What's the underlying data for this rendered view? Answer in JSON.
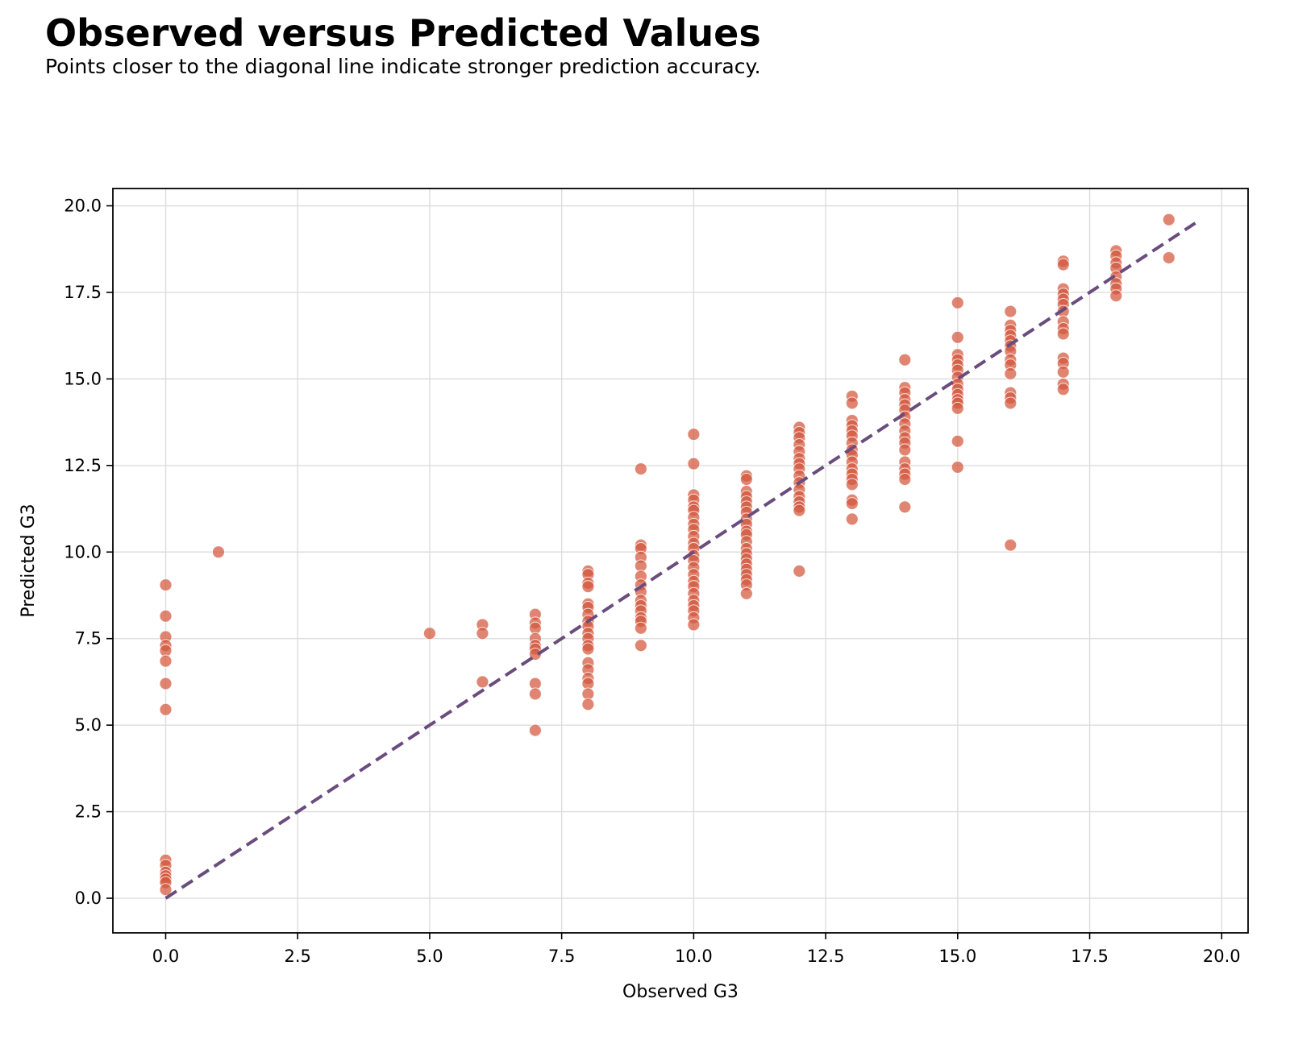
{
  "chart_data": {
    "type": "scatter",
    "title": "Observed versus Predicted Values",
    "subtitle": "Points closer to the diagonal line indicate stronger prediction accuracy.",
    "xlabel": "Observed G3",
    "ylabel": "Predicted G3",
    "xlim": [
      -1,
      20.5
    ],
    "ylim": [
      -1,
      20.5
    ],
    "xticks": [
      "0.0",
      "2.5",
      "5.0",
      "7.5",
      "10.0",
      "12.5",
      "15.0",
      "17.5",
      "20.0"
    ],
    "yticks": [
      "0.0",
      "2.5",
      "5.0",
      "7.5",
      "10.0",
      "12.5",
      "15.0",
      "17.5",
      "20.0"
    ],
    "grid": true,
    "reference_line": {
      "from": [
        0,
        0
      ],
      "to": [
        19.5,
        19.5
      ],
      "style": "dashed",
      "color": "#6a4c7d"
    },
    "point_color": "#d2563c",
    "points": [
      [
        0,
        9.05
      ],
      [
        0,
        8.15
      ],
      [
        0,
        7.55
      ],
      [
        0,
        7.3
      ],
      [
        0,
        7.15
      ],
      [
        0,
        6.85
      ],
      [
        0,
        6.2
      ],
      [
        0,
        5.45
      ],
      [
        0,
        1.1
      ],
      [
        0,
        0.95
      ],
      [
        0,
        0.75
      ],
      [
        0,
        0.65
      ],
      [
        0,
        0.55
      ],
      [
        0,
        0.45
      ],
      [
        0,
        0.25
      ],
      [
        1,
        10.0
      ],
      [
        5,
        7.65
      ],
      [
        6,
        7.9
      ],
      [
        6,
        7.65
      ],
      [
        6,
        6.25
      ],
      [
        7,
        8.2
      ],
      [
        7,
        7.95
      ],
      [
        7,
        7.8
      ],
      [
        7,
        7.5
      ],
      [
        7,
        7.3
      ],
      [
        7,
        7.2
      ],
      [
        7,
        7.05
      ],
      [
        7,
        6.2
      ],
      [
        7,
        5.9
      ],
      [
        7,
        4.85
      ],
      [
        8,
        9.45
      ],
      [
        8,
        9.35
      ],
      [
        8,
        9.1
      ],
      [
        8,
        9.0
      ],
      [
        8,
        8.5
      ],
      [
        8,
        8.4
      ],
      [
        8,
        8.2
      ],
      [
        8,
        8.0
      ],
      [
        8,
        7.85
      ],
      [
        8,
        7.65
      ],
      [
        8,
        7.5
      ],
      [
        8,
        7.3
      ],
      [
        8,
        7.2
      ],
      [
        8,
        6.8
      ],
      [
        8,
        6.6
      ],
      [
        8,
        6.35
      ],
      [
        8,
        6.2
      ],
      [
        8,
        5.9
      ],
      [
        8,
        5.6
      ],
      [
        9,
        12.4
      ],
      [
        9,
        10.2
      ],
      [
        9,
        10.1
      ],
      [
        9,
        9.85
      ],
      [
        9,
        9.6
      ],
      [
        9,
        9.3
      ],
      [
        9,
        9.05
      ],
      [
        9,
        8.85
      ],
      [
        9,
        8.6
      ],
      [
        9,
        8.45
      ],
      [
        9,
        8.3
      ],
      [
        9,
        8.1
      ],
      [
        9,
        8.0
      ],
      [
        9,
        7.8
      ],
      [
        9,
        7.3
      ],
      [
        10,
        13.4
      ],
      [
        10,
        12.55
      ],
      [
        10,
        11.65
      ],
      [
        10,
        11.5
      ],
      [
        10,
        11.3
      ],
      [
        10,
        11.2
      ],
      [
        10,
        11.0
      ],
      [
        10,
        10.8
      ],
      [
        10,
        10.65
      ],
      [
        10,
        10.45
      ],
      [
        10,
        10.25
      ],
      [
        10,
        10.1
      ],
      [
        10,
        9.9
      ],
      [
        10,
        9.75
      ],
      [
        10,
        9.55
      ],
      [
        10,
        9.35
      ],
      [
        10,
        9.15
      ],
      [
        10,
        9.0
      ],
      [
        10,
        8.8
      ],
      [
        10,
        8.6
      ],
      [
        10,
        8.45
      ],
      [
        10,
        8.3
      ],
      [
        10,
        8.1
      ],
      [
        10,
        7.9
      ],
      [
        11,
        12.2
      ],
      [
        11,
        12.1
      ],
      [
        11,
        11.75
      ],
      [
        11,
        11.6
      ],
      [
        11,
        11.45
      ],
      [
        11,
        11.3
      ],
      [
        11,
        11.15
      ],
      [
        11,
        10.95
      ],
      [
        11,
        10.8
      ],
      [
        11,
        10.6
      ],
      [
        11,
        10.5
      ],
      [
        11,
        10.3
      ],
      [
        11,
        10.1
      ],
      [
        11,
        9.95
      ],
      [
        11,
        9.8
      ],
      [
        11,
        9.65
      ],
      [
        11,
        9.5
      ],
      [
        11,
        9.35
      ],
      [
        11,
        9.2
      ],
      [
        11,
        9.05
      ],
      [
        11,
        8.8
      ],
      [
        12,
        13.6
      ],
      [
        12,
        13.45
      ],
      [
        12,
        13.3
      ],
      [
        12,
        13.1
      ],
      [
        12,
        12.9
      ],
      [
        12,
        12.7
      ],
      [
        12,
        12.55
      ],
      [
        12,
        12.4
      ],
      [
        12,
        12.2
      ],
      [
        12,
        12.0
      ],
      [
        12,
        11.8
      ],
      [
        12,
        11.6
      ],
      [
        12,
        11.45
      ],
      [
        12,
        11.3
      ],
      [
        12,
        11.2
      ],
      [
        12,
        9.45
      ],
      [
        13,
        14.5
      ],
      [
        13,
        14.3
      ],
      [
        13,
        13.8
      ],
      [
        13,
        13.65
      ],
      [
        13,
        13.5
      ],
      [
        13,
        13.35
      ],
      [
        13,
        13.15
      ],
      [
        13,
        12.95
      ],
      [
        13,
        12.8
      ],
      [
        13,
        12.6
      ],
      [
        13,
        12.4
      ],
      [
        13,
        12.25
      ],
      [
        13,
        12.1
      ],
      [
        13,
        11.95
      ],
      [
        13,
        11.5
      ],
      [
        13,
        11.4
      ],
      [
        13,
        10.95
      ],
      [
        14,
        15.55
      ],
      [
        14,
        14.75
      ],
      [
        14,
        14.6
      ],
      [
        14,
        14.4
      ],
      [
        14,
        14.25
      ],
      [
        14,
        14.1
      ],
      [
        14,
        13.9
      ],
      [
        14,
        13.7
      ],
      [
        14,
        13.5
      ],
      [
        14,
        13.3
      ],
      [
        14,
        13.15
      ],
      [
        14,
        12.95
      ],
      [
        14,
        12.6
      ],
      [
        14,
        12.4
      ],
      [
        14,
        12.25
      ],
      [
        14,
        12.1
      ],
      [
        14,
        11.3
      ],
      [
        15,
        17.2
      ],
      [
        15,
        16.2
      ],
      [
        15,
        15.7
      ],
      [
        15,
        15.55
      ],
      [
        15,
        15.4
      ],
      [
        15,
        15.25
      ],
      [
        15,
        15.05
      ],
      [
        15,
        14.85
      ],
      [
        15,
        14.7
      ],
      [
        15,
        14.55
      ],
      [
        15,
        14.4
      ],
      [
        15,
        14.3
      ],
      [
        15,
        14.15
      ],
      [
        15,
        13.2
      ],
      [
        15,
        12.45
      ],
      [
        16,
        16.95
      ],
      [
        16,
        16.55
      ],
      [
        16,
        16.4
      ],
      [
        16,
        16.25
      ],
      [
        16,
        16.1
      ],
      [
        16,
        15.95
      ],
      [
        16,
        15.8
      ],
      [
        16,
        15.55
      ],
      [
        16,
        15.4
      ],
      [
        16,
        15.15
      ],
      [
        16,
        14.6
      ],
      [
        16,
        14.45
      ],
      [
        16,
        14.3
      ],
      [
        16,
        10.2
      ],
      [
        17,
        18.4
      ],
      [
        17,
        18.3
      ],
      [
        17,
        17.6
      ],
      [
        17,
        17.45
      ],
      [
        17,
        17.3
      ],
      [
        17,
        17.15
      ],
      [
        17,
        16.95
      ],
      [
        17,
        16.65
      ],
      [
        17,
        16.45
      ],
      [
        17,
        16.3
      ],
      [
        17,
        15.6
      ],
      [
        17,
        15.45
      ],
      [
        17,
        15.2
      ],
      [
        17,
        14.85
      ],
      [
        17,
        14.7
      ],
      [
        18,
        18.7
      ],
      [
        18,
        18.55
      ],
      [
        18,
        18.35
      ],
      [
        18,
        18.2
      ],
      [
        18,
        17.95
      ],
      [
        18,
        17.75
      ],
      [
        18,
        17.6
      ],
      [
        18,
        17.4
      ],
      [
        19,
        19.6
      ],
      [
        19,
        18.5
      ]
    ]
  }
}
